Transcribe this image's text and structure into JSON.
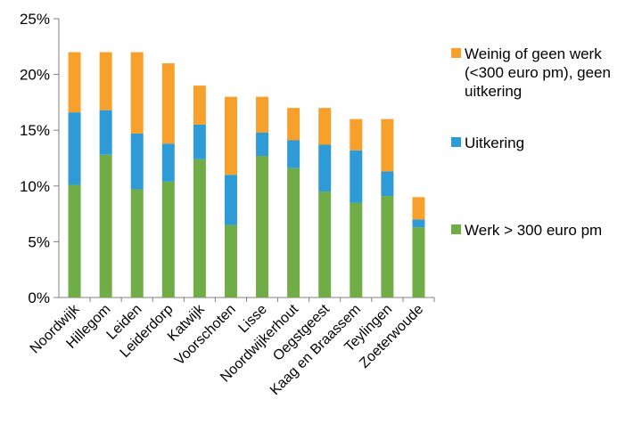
{
  "chart_data": {
    "type": "bar",
    "stacked": true,
    "categories": [
      "Noordwijk",
      "Hillegom",
      "Leiden",
      "Leiderdorp",
      "Katwijk",
      "Voorschoten",
      "Lisse",
      "Noordwijkerhout",
      "Oegstgeest",
      "Kaag en Braassem",
      "Teylingen",
      "Zoeterwoude"
    ],
    "series": [
      {
        "name": "Werk > 300 euro pm",
        "color": "#70AD47",
        "values": [
          10.1,
          12.8,
          9.7,
          10.4,
          12.4,
          6.5,
          12.7,
          11.6,
          9.5,
          8.5,
          9.1,
          6.3
        ]
      },
      {
        "name": "Uitkering",
        "color": "#2E9BD6",
        "values": [
          6.5,
          4.0,
          5.0,
          3.4,
          3.1,
          4.5,
          2.1,
          2.5,
          4.2,
          4.7,
          2.2,
          0.7
        ]
      },
      {
        "name": "Weinig of geen werk (<300 euro pm), geen uitkering",
        "color": "#F7A02B",
        "values": [
          5.4,
          5.2,
          7.3,
          7.2,
          3.5,
          7.0,
          3.2,
          2.9,
          3.3,
          2.8,
          4.7,
          2.0
        ]
      }
    ],
    "yTicks": [
      "0%",
      "5%",
      "10%",
      "15%",
      "20%",
      "25%"
    ],
    "ylim": [
      0,
      25
    ],
    "legend_position": "right",
    "grid": false
  }
}
